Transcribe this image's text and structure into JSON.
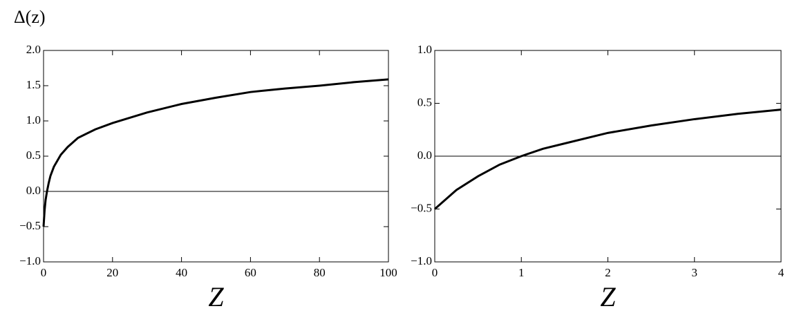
{
  "chart_data": [
    {
      "type": "line",
      "ylabel": "Δ(z)",
      "xlabel": "Z",
      "x": [
        0,
        0.3,
        0.6,
        1,
        1.5,
        2,
        3,
        5,
        7,
        10,
        15,
        20,
        30,
        40,
        50,
        60,
        70,
        80,
        90,
        100
      ],
      "series": [
        {
          "name": "Δ(z)",
          "color": "#000000",
          "values": [
            -0.5,
            -0.27,
            -0.12,
            0,
            0.12,
            0.22,
            0.35,
            0.52,
            0.63,
            0.76,
            0.88,
            0.97,
            1.12,
            1.24,
            1.33,
            1.41,
            1.46,
            1.5,
            1.55,
            1.59
          ]
        }
      ],
      "xlim": [
        0,
        100
      ],
      "ylim": [
        -1,
        2
      ],
      "xticks": [
        0,
        20,
        40,
        60,
        80,
        100
      ],
      "yticks": [
        {
          "value": -1,
          "label": "−1.0"
        },
        {
          "value": -0.5,
          "label": "−0.5"
        },
        {
          "value": 0,
          "label": "0.0"
        },
        {
          "value": 0.5,
          "label": "0.5"
        },
        {
          "value": 1,
          "label": "1.0"
        },
        {
          "value": 1.5,
          "label": "1.5"
        },
        {
          "value": 2,
          "label": "2.0"
        }
      ]
    },
    {
      "type": "line",
      "xlabel": "Z",
      "x": [
        0,
        0.25,
        0.5,
        0.75,
        1,
        1.25,
        1.5,
        2,
        2.5,
        3,
        3.5,
        4
      ],
      "series": [
        {
          "name": "Δ(z)",
          "color": "#000000",
          "values": [
            -0.5,
            -0.32,
            -0.19,
            -0.08,
            0,
            0.07,
            0.12,
            0.22,
            0.29,
            0.35,
            0.4,
            0.44
          ]
        }
      ],
      "xlim": [
        0,
        4
      ],
      "ylim": [
        -1,
        1
      ],
      "xticks": [
        0,
        1,
        2,
        3,
        4
      ],
      "yticks": [
        {
          "value": -1,
          "label": "−1.0"
        },
        {
          "value": -0.5,
          "label": "−0.5"
        },
        {
          "value": 0,
          "label": "0.0"
        },
        {
          "value": 0.5,
          "label": "0.5"
        },
        {
          "value": 1,
          "label": "1.0"
        }
      ]
    }
  ]
}
